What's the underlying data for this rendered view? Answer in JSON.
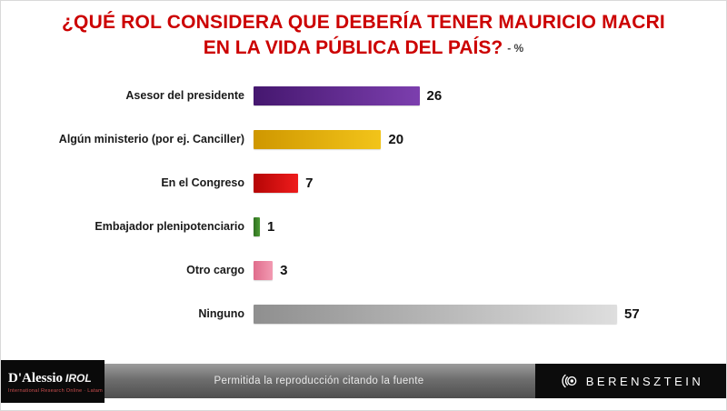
{
  "title": {
    "line1": "¿QUÉ ROL CONSIDERA QUE DEBERÍA TENER MAURICIO MACRI",
    "line2": "EN LA VIDA PÚBLICA DEL PAÍS?",
    "suffix": "- %"
  },
  "chart_data": {
    "type": "bar",
    "orientation": "horizontal",
    "title": "¿Qué rol considera que debería tener Mauricio Macri en la vida pública del país? (%)",
    "categories": [
      "Asesor del presidente",
      "Algún ministerio (por ej. Canciller)",
      "En el Congreso",
      "Embajador plenipotenciario",
      "Otro cargo",
      "Ninguno"
    ],
    "values": [
      26,
      20,
      7,
      1,
      3,
      57
    ],
    "value_suffix": "%",
    "xlim": [
      0,
      60
    ],
    "grid": false,
    "legend": "none",
    "bar_colors": [
      {
        "from": "#45176f",
        "to": "#7c3fae"
      },
      {
        "from": "#cf9700",
        "to": "#f2c41a"
      },
      {
        "from": "#b50505",
        "to": "#ee1c1c"
      },
      {
        "from": "#2f7020",
        "to": "#4c9a34"
      },
      {
        "from": "#e06c8c",
        "to": "#f29ab2"
      },
      {
        "from": "#8f8f8f",
        "to": "#dedede"
      }
    ]
  },
  "footer": {
    "note": "Permitida la reproducción citando la fuente",
    "left_logo": {
      "name": "D'Alessio",
      "brand": "IROL",
      "subtitle": "International Research Online · Latam"
    },
    "right_logo": "BERENSZTEIN",
    "right_logo_icon": "concentric-circles-icon"
  }
}
